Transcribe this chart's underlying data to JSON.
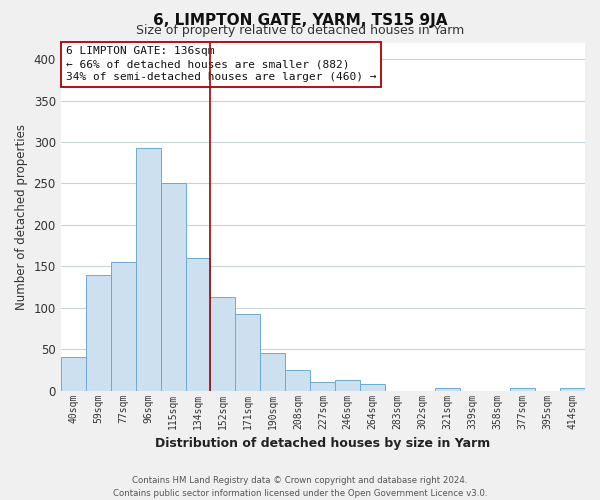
{
  "title": "6, LIMPTON GATE, YARM, TS15 9JA",
  "subtitle": "Size of property relative to detached houses in Yarm",
  "xlabel": "Distribution of detached houses by size in Yarm",
  "ylabel": "Number of detached properties",
  "bar_labels": [
    "40sqm",
    "59sqm",
    "77sqm",
    "96sqm",
    "115sqm",
    "134sqm",
    "152sqm",
    "171sqm",
    "190sqm",
    "208sqm",
    "227sqm",
    "246sqm",
    "264sqm",
    "283sqm",
    "302sqm",
    "321sqm",
    "339sqm",
    "358sqm",
    "377sqm",
    "395sqm",
    "414sqm"
  ],
  "bar_values": [
    40,
    140,
    155,
    293,
    251,
    160,
    113,
    93,
    46,
    25,
    10,
    13,
    8,
    0,
    0,
    3,
    0,
    0,
    3,
    0,
    3
  ],
  "bar_color": "#cce0f0",
  "bar_edge_color": "#6aaad4",
  "vline_color": "#aa0000",
  "vline_x_idx": 5,
  "annotation_line1": "6 LIMPTON GATE: 136sqm",
  "annotation_line2": "← 66% of detached houses are smaller (882)",
  "annotation_line3": "34% of semi-detached houses are larger (460) →",
  "ylim": [
    0,
    420
  ],
  "yticks": [
    0,
    50,
    100,
    150,
    200,
    250,
    300,
    350,
    400
  ],
  "footer_line1": "Contains HM Land Registry data © Crown copyright and database right 2024.",
  "footer_line2": "Contains public sector information licensed under the Open Government Licence v3.0.",
  "bg_color": "#f0f0f0",
  "plot_bg_color": "#ffffff",
  "grid_color": "#c8d4dc"
}
